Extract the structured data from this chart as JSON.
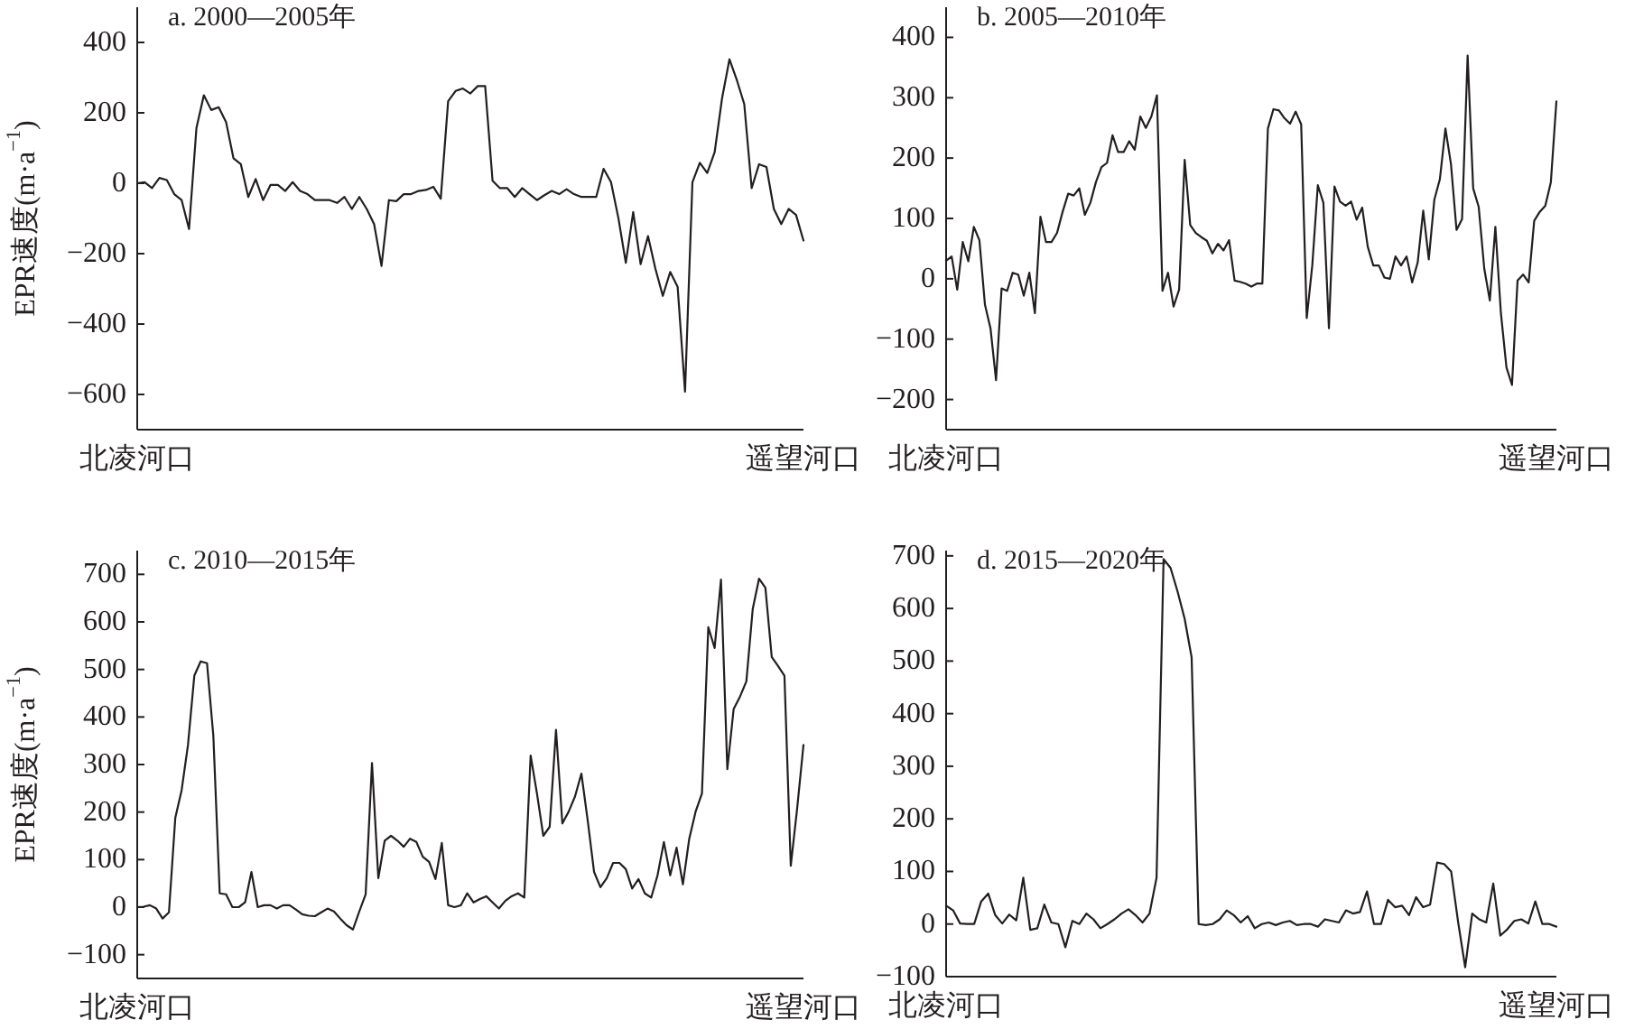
{
  "chart_data": [
    {
      "type": "line",
      "title": "a. 2000—2005年",
      "ylabel": "EPR速度(m·a$^{−1}$)",
      "categories": [
        "北凌河口",
        null,
        null,
        null,
        null,
        null,
        null,
        null,
        null,
        null,
        null,
        null,
        null,
        null,
        null,
        null,
        null,
        null,
        null,
        null,
        null,
        null,
        null,
        null,
        null,
        null,
        null,
        null,
        null,
        null,
        null,
        null,
        null,
        null,
        null,
        null,
        null,
        null,
        null,
        null,
        null,
        null,
        null,
        null,
        null,
        null,
        null,
        null,
        null,
        null,
        null,
        null,
        null,
        null,
        null,
        null,
        null,
        null,
        null,
        null,
        null,
        null,
        null,
        null,
        null,
        null,
        null,
        null,
        null,
        null,
        null,
        null,
        null,
        null,
        null,
        null,
        null,
        null,
        null,
        null,
        null,
        null,
        null,
        null,
        null,
        null,
        null,
        null,
        null,
        null,
        "遥望河口"
      ],
      "ylim": [
        -700,
        500
      ],
      "yticks": [
        -600,
        -400,
        -200,
        0,
        200,
        400
      ],
      "grid": false,
      "marker": "none",
      "line_style": "solid",
      "series": [
        {
          "color": "#231f20",
          "values": [
            0,
            3,
            -14,
            15,
            9,
            -31,
            -48,
            -130,
            157,
            250,
            208,
            216,
            174,
            71,
            54,
            -39,
            12,
            -48,
            -5,
            -5,
            -22,
            3,
            -22,
            -31,
            -48,
            -48,
            -48,
            -56,
            -39,
            -73,
            -39,
            -73,
            -116,
            -235,
            -48,
            -51,
            -31,
            -31,
            -22,
            -19,
            -10,
            -44,
            233,
            262,
            269,
            255,
            276,
            276,
            7,
            -14,
            -14,
            -39,
            -14,
            -31,
            -48,
            -34,
            -22,
            -31,
            -17,
            -31,
            -39,
            -39,
            -39,
            41,
            3,
            -99,
            -226,
            -82,
            -230,
            -150,
            -243,
            -320,
            -252,
            -294,
            -592,
            3,
            58,
            29,
            88,
            241,
            352,
            293,
            225,
            -14,
            54,
            46,
            -73,
            -116,
            -73,
            -90,
            -163
          ]
        }
      ]
    },
    {
      "type": "line",
      "title": "b. 2005—2010年",
      "categories": [
        "北凌河口",
        null,
        null,
        null,
        null,
        null,
        null,
        null,
        null,
        null,
        null,
        null,
        null,
        null,
        null,
        null,
        null,
        null,
        null,
        null,
        null,
        null,
        null,
        null,
        null,
        null,
        null,
        null,
        null,
        null,
        null,
        null,
        null,
        null,
        null,
        null,
        null,
        null,
        null,
        null,
        null,
        null,
        null,
        null,
        null,
        null,
        null,
        null,
        null,
        null,
        null,
        null,
        null,
        null,
        null,
        null,
        null,
        null,
        null,
        null,
        null,
        null,
        null,
        null,
        null,
        null,
        null,
        null,
        null,
        null,
        null,
        null,
        null,
        null,
        null,
        null,
        null,
        null,
        null,
        null,
        null,
        null,
        null,
        null,
        null,
        null,
        null,
        null,
        null,
        null,
        null,
        null,
        null,
        null,
        null,
        null,
        null,
        null,
        null,
        null,
        null,
        null,
        null,
        null,
        null,
        null,
        null,
        null,
        null,
        null,
        "遥望河口"
      ],
      "ylim": [
        -250,
        450
      ],
      "yticks": [
        -200,
        -100,
        0,
        100,
        200,
        300,
        400
      ],
      "grid": false,
      "marker": "none",
      "line_style": "solid",
      "series": [
        {
          "color": "#231f20",
          "values": [
            30,
            37,
            -18,
            61,
            29,
            86,
            64,
            -43,
            -82,
            -168,
            -16,
            -20,
            10,
            7,
            -28,
            10,
            -57,
            103,
            61,
            61,
            76,
            111,
            141,
            138,
            150,
            106,
            126,
            160,
            185,
            192,
            238,
            210,
            210,
            228,
            214,
            269,
            250,
            269,
            304,
            -20,
            10,
            -46,
            -18,
            197,
            89,
            76,
            69,
            63,
            42,
            58,
            47,
            64,
            -3,
            -5,
            -8,
            -13,
            -8,
            -8,
            249,
            281,
            279,
            266,
            257,
            277,
            256,
            -65,
            22,
            155,
            126,
            -82,
            153,
            128,
            121,
            128,
            98,
            118,
            53,
            22,
            22,
            2,
            0,
            37,
            22,
            37,
            -6,
            27,
            113,
            32,
            131,
            165,
            249,
            190,
            81,
            99,
            370,
            150,
            119,
            17,
            -36,
            86,
            -57,
            -147,
            -176,
            -3,
            7,
            -6,
            96,
            111,
            121,
            160,
            294
          ]
        }
      ]
    },
    {
      "type": "line",
      "title": "c. 2010—2015年",
      "ylabel": "EPR速度(m·a$^{−1}$)",
      "categories": [
        "北凌河口",
        null,
        null,
        null,
        null,
        null,
        null,
        null,
        null,
        null,
        null,
        null,
        null,
        null,
        null,
        null,
        null,
        null,
        null,
        null,
        null,
        null,
        null,
        null,
        null,
        null,
        null,
        null,
        null,
        null,
        null,
        null,
        null,
        null,
        null,
        null,
        null,
        null,
        null,
        null,
        null,
        null,
        null,
        null,
        null,
        null,
        null,
        null,
        null,
        null,
        null,
        null,
        null,
        null,
        null,
        null,
        null,
        null,
        null,
        null,
        null,
        null,
        null,
        null,
        null,
        null,
        null,
        null,
        null,
        null,
        null,
        null,
        null,
        null,
        null,
        null,
        null,
        null,
        null,
        null,
        null,
        null,
        null,
        null,
        null,
        null,
        null,
        null,
        null,
        null,
        null,
        null,
        null,
        null,
        null,
        null,
        null,
        null,
        null,
        null,
        null,
        null,
        null,
        null,
        null,
        "遥望河口"
      ],
      "ylim": [
        -150,
        750
      ],
      "yticks": [
        -100,
        0,
        100,
        200,
        300,
        400,
        500,
        600,
        700
      ],
      "grid": false,
      "marker": "none",
      "line_style": "solid",
      "series": [
        {
          "color": "#231f20",
          "values": [
            0,
            1,
            4,
            -3,
            -24,
            -11,
            188,
            246,
            341,
            487,
            517,
            513,
            360,
            29,
            27,
            0,
            0,
            10,
            74,
            0,
            4,
            4,
            -3,
            4,
            4,
            -5,
            -15,
            -18,
            -19,
            -11,
            -3,
            -9,
            -24,
            -38,
            -47,
            -9,
            27,
            303,
            61,
            140,
            150,
            140,
            127,
            144,
            137,
            106,
            95,
            59,
            135,
            4,
            0,
            4,
            29,
            10,
            17,
            23,
            10,
            -3,
            13,
            23,
            29,
            20,
            319,
            239,
            150,
            169,
            373,
            176,
            201,
            233,
            281,
            182,
            74,
            42,
            61,
            93,
            93,
            80,
            39,
            59,
            29,
            20,
            67,
            137,
            67,
            125,
            48,
            144,
            201,
            239,
            589,
            545,
            689,
            290,
            417,
            443,
            475,
            627,
            691,
            672,
            526,
            507,
            487,
            87,
            207,
            341
          ]
        }
      ]
    },
    {
      "type": "line",
      "title": "d. 2015—2020年",
      "categories": [
        "北凌河口",
        null,
        null,
        null,
        null,
        null,
        null,
        null,
        null,
        null,
        null,
        null,
        null,
        null,
        null,
        null,
        null,
        null,
        null,
        null,
        null,
        null,
        null,
        null,
        null,
        null,
        null,
        null,
        null,
        null,
        null,
        null,
        null,
        null,
        null,
        null,
        null,
        null,
        null,
        null,
        null,
        null,
        null,
        null,
        null,
        null,
        null,
        null,
        null,
        null,
        null,
        null,
        null,
        null,
        null,
        null,
        null,
        null,
        null,
        null,
        null,
        null,
        null,
        null,
        null,
        null,
        null,
        null,
        null,
        null,
        null,
        null,
        null,
        null,
        null,
        null,
        null,
        null,
        null,
        null,
        null,
        null,
        null,
        null,
        null,
        null,
        null,
        "遥望河口"
      ],
      "ylim": [
        -100,
        710
      ],
      "yticks": [
        -100,
        0,
        100,
        200,
        300,
        400,
        500,
        600,
        700
      ],
      "grid": false,
      "marker": "none",
      "line_style": "solid",
      "series": [
        {
          "color": "#231f20",
          "values": [
            35,
            26,
            1,
            0,
            0,
            43,
            58,
            17,
            1,
            18,
            7,
            88,
            -11,
            -8,
            37,
            3,
            0,
            -44,
            6,
            0,
            20,
            9,
            -8,
            0,
            9,
            20,
            28,
            17,
            3,
            20,
            88,
            694,
            677,
            632,
            581,
            507,
            0,
            -2,
            0,
            9,
            26,
            17,
            3,
            15,
            -8,
            0,
            3,
            -2,
            3,
            6,
            -2,
            0,
            0,
            -5,
            9,
            6,
            3,
            26,
            20,
            23,
            62,
            0,
            0,
            46,
            32,
            35,
            17,
            51,
            32,
            37,
            117,
            114,
            100,
            3,
            -82,
            20,
            9,
            3,
            77,
            -22,
            -10,
            6,
            9,
            1,
            43,
            0,
            0,
            -5
          ]
        }
      ]
    }
  ]
}
